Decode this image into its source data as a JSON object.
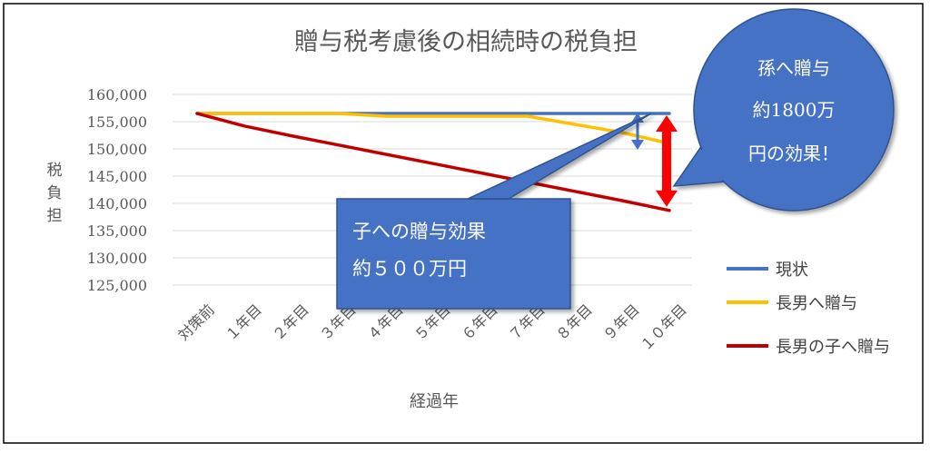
{
  "chart_data": {
    "type": "line",
    "title": "贈与税考慮後の相続時の税負担",
    "xlabel": "経過年",
    "ylabel": "税負担",
    "categories": [
      "対策前",
      "１年目",
      "２年目",
      "３年目",
      "４年目",
      "５年目",
      "６年目",
      "７年目",
      "８年目",
      "９年目",
      "１０年目"
    ],
    "y_tick_labels": [
      "160,000",
      "155,000",
      "150,000",
      "145,000",
      "140,000",
      "135,000",
      "130,000",
      "125,000"
    ],
    "y_ticks": [
      160000,
      155000,
      150000,
      145000,
      140000,
      135000,
      130000,
      125000
    ],
    "ylim": [
      125000,
      160000
    ],
    "grid": true,
    "legend_position": "right",
    "series": [
      {
        "name": "現状",
        "color": "#4472C4",
        "values": [
          156500,
          156500,
          156500,
          156500,
          156500,
          156500,
          156500,
          156500,
          156500,
          156500,
          156500
        ]
      },
      {
        "name": "長男へ贈与",
        "color": "#FFC000",
        "values": [
          156500,
          156500,
          156500,
          156500,
          156000,
          156000,
          156000,
          156000,
          154500,
          153000,
          151000
        ]
      },
      {
        "name": "長男の子へ贈与",
        "color": "#C00000",
        "values": [
          156500,
          154200,
          152400,
          150700,
          149000,
          147300,
          145600,
          143900,
          142200,
          140500,
          138700
        ]
      }
    ],
    "annotations": [
      {
        "id": "callout_child",
        "lines": [
          "子への贈与効果",
          "約５００万円"
        ]
      },
      {
        "id": "callout_grandchild",
        "lines": [
          "孫へ贈与",
          "約1800万",
          "円の効果！"
        ]
      }
    ]
  },
  "colors": {
    "callout_fill": "#4472C4",
    "callout_stroke": "#2F528F",
    "red_arrow": "#FF0000",
    "blue_arrow": "#4472C4",
    "grid": "#D9D9D9",
    "text": "#595959"
  }
}
